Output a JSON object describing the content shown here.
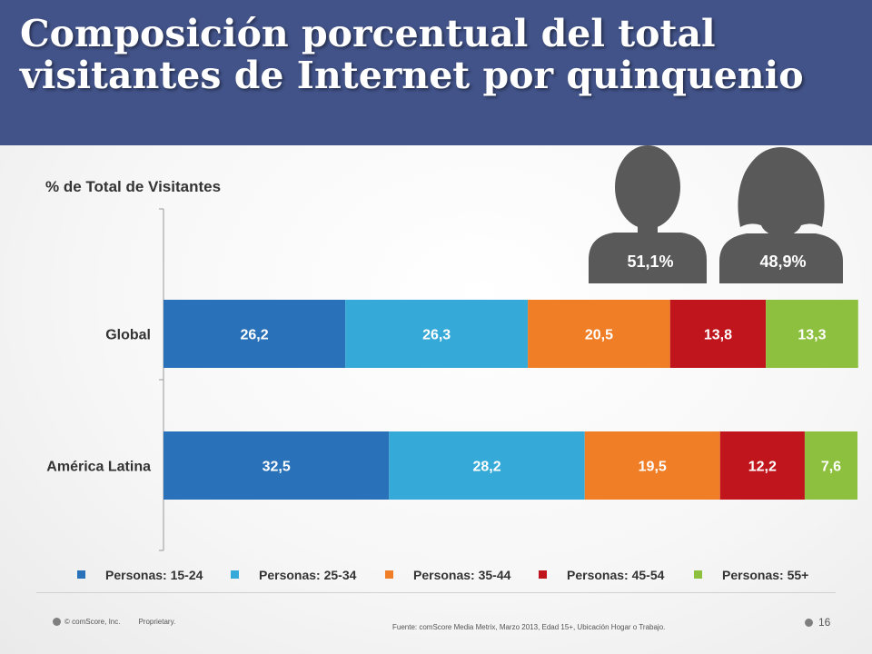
{
  "slide": {
    "title": "Composición porcentual del total visitantes de Internet por quinquenio",
    "axis_title": "% de Total de Visitantes",
    "gender": {
      "male_pct": "51,1%",
      "female_pct": "48,9%"
    },
    "footer": {
      "copyright": "© comScore, Inc.",
      "proprietary": "Proprietary.",
      "source": "Fuente: comScore Media Metrix, Marzo 2013, Edad 15+, Ubicación Hogar o Trabajo.",
      "page_number": "16"
    }
  },
  "chart_data": {
    "type": "bar",
    "orientation": "horizontal",
    "stacked": true,
    "categories": [
      "Global",
      "América Latina"
    ],
    "series": [
      {
        "name": "Personas: 15-24",
        "color": "#2971b8",
        "values": [
          26.2,
          32.5
        ],
        "labels": [
          "26,2",
          "32,5"
        ]
      },
      {
        "name": "Personas: 25-34",
        "color": "#35a9d7",
        "values": [
          26.3,
          28.2
        ],
        "labels": [
          "26,3",
          "28,2"
        ]
      },
      {
        "name": "Personas: 35-44",
        "color": "#f07e26",
        "values": [
          20.5,
          19.5
        ],
        "labels": [
          "20,5",
          "19,5"
        ]
      },
      {
        "name": "Personas: 45-54",
        "color": "#c0151c",
        "values": [
          13.8,
          12.2
        ],
        "labels": [
          "13,8",
          "12,2"
        ]
      },
      {
        "name": "Personas: 55+",
        "color": "#8dc03e",
        "values": [
          13.3,
          7.6
        ],
        "labels": [
          "13,3",
          "7,6"
        ]
      }
    ],
    "xlim": [
      0,
      100
    ],
    "grid": false,
    "legend": "bottom"
  }
}
